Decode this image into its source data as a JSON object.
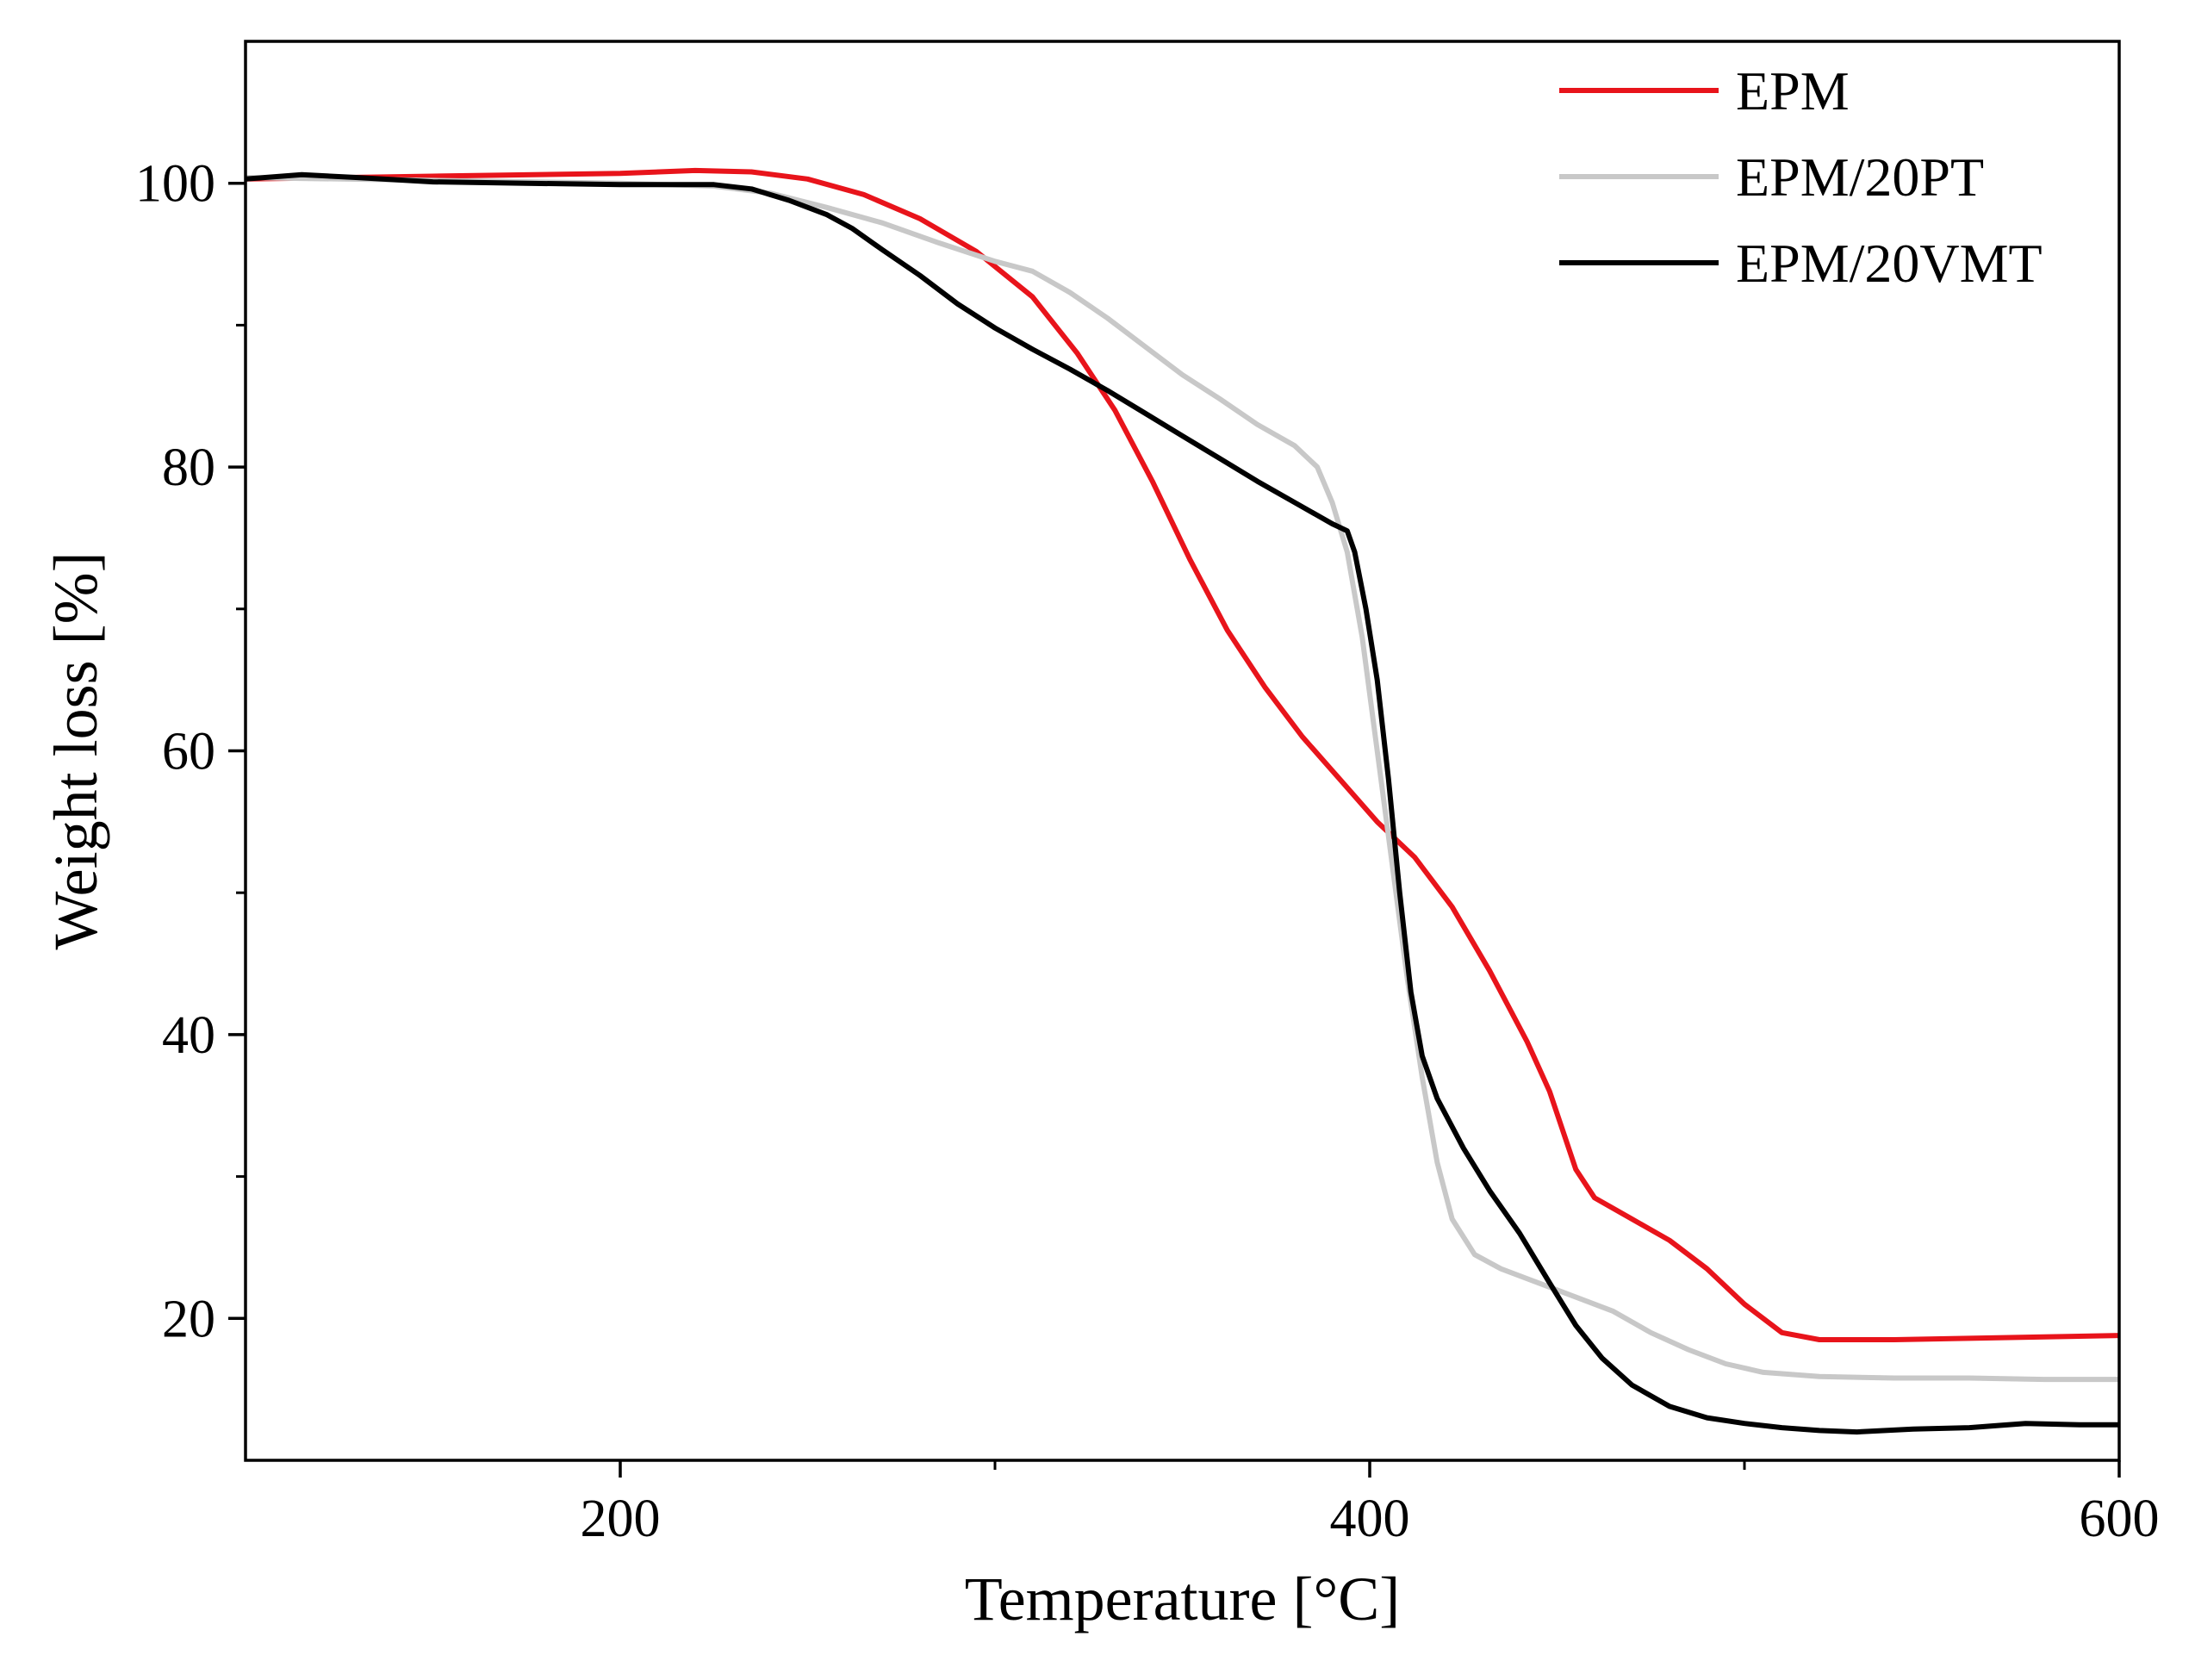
{
  "chart_data": {
    "type": "line",
    "title": "",
    "xlabel": "Temperature [°C]",
    "ylabel": "Weight loss [%]",
    "xlim": [
      100,
      600
    ],
    "ylim": [
      10,
      110
    ],
    "xticks": [
      200,
      400,
      600
    ],
    "xticks_minor": [
      300,
      500
    ],
    "yticks": [
      20,
      40,
      60,
      80,
      100
    ],
    "yticks_minor": [
      30,
      50,
      70,
      90
    ],
    "legend_position": "top-right",
    "grid": false,
    "series": [
      {
        "name": "EPM",
        "color": "#e8141b",
        "points": [
          [
            100,
            100.3
          ],
          [
            150,
            100.5
          ],
          [
            200,
            100.7
          ],
          [
            220,
            100.9
          ],
          [
            235,
            100.8
          ],
          [
            250,
            100.3
          ],
          [
            265,
            99.2
          ],
          [
            280,
            97.5
          ],
          [
            295,
            95.2
          ],
          [
            310,
            92.0
          ],
          [
            322,
            88.0
          ],
          [
            332,
            84.0
          ],
          [
            342,
            79.0
          ],
          [
            352,
            73.5
          ],
          [
            362,
            68.5
          ],
          [
            372,
            64.5
          ],
          [
            382,
            61.0
          ],
          [
            392,
            58.0
          ],
          [
            402,
            55.0
          ],
          [
            412,
            52.5
          ],
          [
            422,
            49.0
          ],
          [
            432,
            44.5
          ],
          [
            442,
            39.5
          ],
          [
            448,
            36.0
          ],
          [
            455,
            30.5
          ],
          [
            460,
            28.5
          ],
          [
            470,
            27.0
          ],
          [
            480,
            25.5
          ],
          [
            490,
            23.5
          ],
          [
            500,
            21.0
          ],
          [
            510,
            19.0
          ],
          [
            520,
            18.5
          ],
          [
            540,
            18.5
          ],
          [
            560,
            18.6
          ],
          [
            580,
            18.7
          ],
          [
            600,
            18.8
          ]
        ]
      },
      {
        "name": "EPM/20PT",
        "color": "#c8c8c8",
        "points": [
          [
            100,
            100.4
          ],
          [
            150,
            100.2
          ],
          [
            200,
            100.0
          ],
          [
            225,
            99.8
          ],
          [
            240,
            99.3
          ],
          [
            255,
            98.3
          ],
          [
            270,
            97.2
          ],
          [
            285,
            95.8
          ],
          [
            300,
            94.5
          ],
          [
            310,
            93.8
          ],
          [
            320,
            92.3
          ],
          [
            330,
            90.5
          ],
          [
            340,
            88.5
          ],
          [
            350,
            86.5
          ],
          [
            360,
            84.8
          ],
          [
            370,
            83.0
          ],
          [
            380,
            81.5
          ],
          [
            386,
            80.0
          ],
          [
            390,
            77.5
          ],
          [
            394,
            74.0
          ],
          [
            398,
            68.0
          ],
          [
            402,
            60.0
          ],
          [
            406,
            52.0
          ],
          [
            410,
            44.0
          ],
          [
            414,
            37.0
          ],
          [
            418,
            31.0
          ],
          [
            422,
            27.0
          ],
          [
            428,
            24.5
          ],
          [
            435,
            23.5
          ],
          [
            445,
            22.5
          ],
          [
            455,
            21.5
          ],
          [
            465,
            20.5
          ],
          [
            475,
            19.0
          ],
          [
            485,
            17.8
          ],
          [
            495,
            16.8
          ],
          [
            505,
            16.2
          ],
          [
            520,
            15.9
          ],
          [
            540,
            15.8
          ],
          [
            560,
            15.8
          ],
          [
            580,
            15.7
          ],
          [
            600,
            15.7
          ]
        ]
      },
      {
        "name": "EPM/20VMT",
        "color": "#000000",
        "points": [
          [
            100,
            100.3
          ],
          [
            115,
            100.6
          ],
          [
            130,
            100.4
          ],
          [
            150,
            100.1
          ],
          [
            175,
            100.0
          ],
          [
            200,
            99.9
          ],
          [
            225,
            99.9
          ],
          [
            235,
            99.6
          ],
          [
            245,
            98.8
          ],
          [
            255,
            97.8
          ],
          [
            262,
            96.8
          ],
          [
            270,
            95.3
          ],
          [
            280,
            93.5
          ],
          [
            290,
            91.5
          ],
          [
            300,
            89.8
          ],
          [
            310,
            88.3
          ],
          [
            320,
            86.9
          ],
          [
            330,
            85.4
          ],
          [
            340,
            83.8
          ],
          [
            350,
            82.2
          ],
          [
            360,
            80.6
          ],
          [
            370,
            79.0
          ],
          [
            380,
            77.5
          ],
          [
            390,
            76.0
          ],
          [
            394,
            75.5
          ],
          [
            396,
            74.0
          ],
          [
            399,
            70.0
          ],
          [
            402,
            65.0
          ],
          [
            405,
            58.0
          ],
          [
            408,
            50.0
          ],
          [
            411,
            43.0
          ],
          [
            414,
            38.5
          ],
          [
            418,
            35.5
          ],
          [
            425,
            32.0
          ],
          [
            432,
            29.0
          ],
          [
            440,
            26.0
          ],
          [
            448,
            22.5
          ],
          [
            455,
            19.5
          ],
          [
            462,
            17.2
          ],
          [
            470,
            15.3
          ],
          [
            480,
            13.8
          ],
          [
            490,
            13.0
          ],
          [
            500,
            12.6
          ],
          [
            510,
            12.3
          ],
          [
            520,
            12.1
          ],
          [
            530,
            12.0
          ],
          [
            545,
            12.2
          ],
          [
            560,
            12.3
          ],
          [
            575,
            12.6
          ],
          [
            590,
            12.5
          ],
          [
            600,
            12.5
          ]
        ]
      }
    ]
  }
}
